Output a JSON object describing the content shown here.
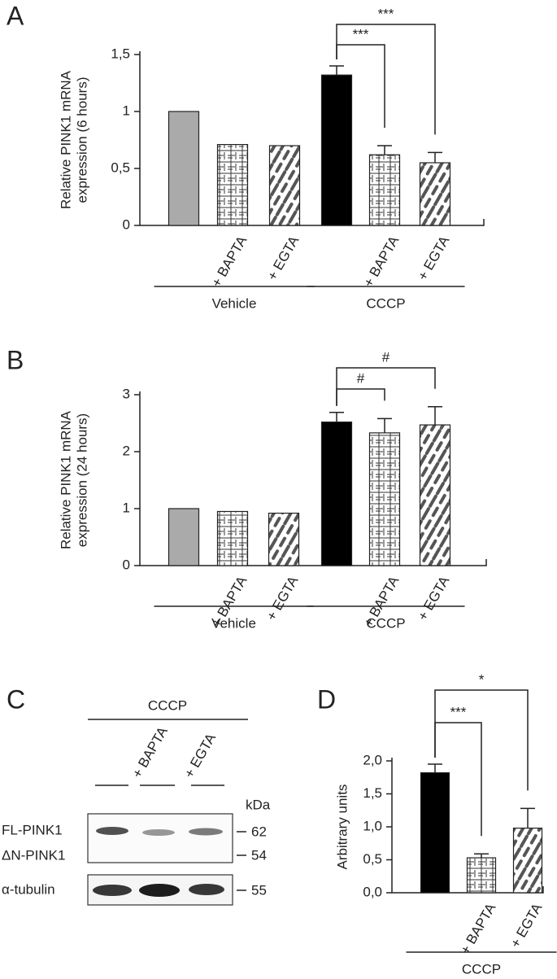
{
  "chart_data": [
    {
      "type": "bar",
      "panel": "A",
      "ylabel": [
        "Relative PINK1 mRNA",
        "expression (6 hours)"
      ],
      "categories": [
        null,
        "+ BAPTA",
        "+ EGTA",
        null,
        "+ BAPTA",
        "+ EGTA"
      ],
      "values": [
        1.0,
        0.71,
        0.7,
        1.32,
        0.62,
        0.55
      ],
      "errors": [
        null,
        null,
        null,
        0.08,
        0.08,
        0.09
      ],
      "fills": [
        "#aaaaaa",
        "grid",
        "dash",
        "#000000",
        "grid",
        "dash"
      ],
      "ylim": [
        0,
        1.5
      ],
      "yticks": [
        0,
        {
          "value": 0.5,
          "label": "0,5"
        },
        1,
        {
          "value": 1.5,
          "label": "1,5"
        }
      ],
      "groups": [
        {
          "label": "Vehicle",
          "from": 0,
          "to": 2
        },
        {
          "label": "CCCP",
          "from": 3,
          "to": 5
        }
      ],
      "significance": [
        {
          "from": 3,
          "to": 4,
          "label": "***"
        },
        {
          "from": 3,
          "to": 5,
          "label": "***"
        }
      ]
    },
    {
      "type": "bar",
      "panel": "B",
      "ylabel": [
        "Relative PINK1 mRNA",
        "expression (24 hours)"
      ],
      "categories": [
        null,
        "+ BAPTA",
        "+ EGTA",
        null,
        "+ BAPTA",
        "+ EGTA"
      ],
      "values": [
        1.0,
        0.95,
        0.92,
        2.52,
        2.33,
        2.47
      ],
      "errors": [
        null,
        null,
        null,
        0.17,
        0.25,
        0.32
      ],
      "fills": [
        "#aaaaaa",
        "grid",
        "dash",
        "#000000",
        "grid",
        "dash"
      ],
      "ylim": [
        0,
        3
      ],
      "yticks": [
        0,
        1,
        2,
        3
      ],
      "groups": [
        {
          "label": "Vehicle",
          "from": 0,
          "to": 2
        },
        {
          "label": "CCCP",
          "from": 3,
          "to": 5
        }
      ],
      "significance": [
        {
          "from": 3,
          "to": 4,
          "label": "#"
        },
        {
          "from": 3,
          "to": 5,
          "label": "#"
        }
      ]
    },
    {
      "type": "bar",
      "panel": "D",
      "ylabel": [
        "Arbitrary units"
      ],
      "categories": [
        null,
        "+ BAPTA",
        "+ EGTA"
      ],
      "values": [
        1.82,
        0.53,
        0.98
      ],
      "errors": [
        0.13,
        0.06,
        0.3
      ],
      "fills": [
        "#000000",
        "grid",
        "dash"
      ],
      "ylim": [
        0,
        2
      ],
      "yticks": [
        {
          "value": 0,
          "label": "0,0"
        },
        {
          "value": 0.5,
          "label": "0,5"
        },
        {
          "value": 1,
          "label": "1,0"
        },
        {
          "value": 1.5,
          "label": "1,5"
        },
        {
          "value": 2,
          "label": "2,0"
        }
      ],
      "groups": [
        {
          "label": "CCCP",
          "from": 0,
          "to": 2
        }
      ],
      "significance": [
        {
          "from": 0,
          "to": 1,
          "label": "***"
        },
        {
          "from": 0,
          "to": 2,
          "label": "*"
        }
      ]
    }
  ],
  "blot": {
    "panel": "C",
    "treatment": "CCCP",
    "lanes": [
      "+ BAPTA",
      "+ EGTA"
    ],
    "unit": "kDa",
    "rows": [
      {
        "label": "FL-PINK1",
        "size": "62"
      },
      {
        "label": "ΔN-PINK1",
        "size": "54"
      },
      {
        "label": "α-tubulin",
        "size": "55"
      }
    ]
  }
}
